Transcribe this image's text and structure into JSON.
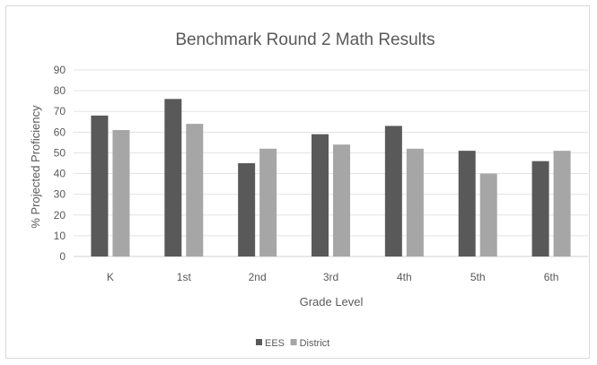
{
  "chart_data": {
    "type": "bar",
    "title": "Benchmark Round 2 Math Results",
    "xlabel": "Grade Level",
    "ylabel": "% Projected Proficiency",
    "categories": [
      "K",
      "1st",
      "2nd",
      "3rd",
      "4th",
      "5th",
      "6th"
    ],
    "series": [
      {
        "name": "EES",
        "values": [
          68,
          76,
          45,
          59,
          63,
          51,
          46
        ],
        "color": "#595959"
      },
      {
        "name": "District",
        "values": [
          61,
          64,
          52,
          54,
          52,
          40,
          51
        ],
        "color": "#a6a6a6"
      }
    ],
    "ylim": [
      0,
      90
    ],
    "yticks": [
      "0",
      "10",
      "20",
      "30",
      "40",
      "50",
      "60",
      "70",
      "80",
      "90"
    ],
    "grid": true,
    "legend": "bottom"
  }
}
